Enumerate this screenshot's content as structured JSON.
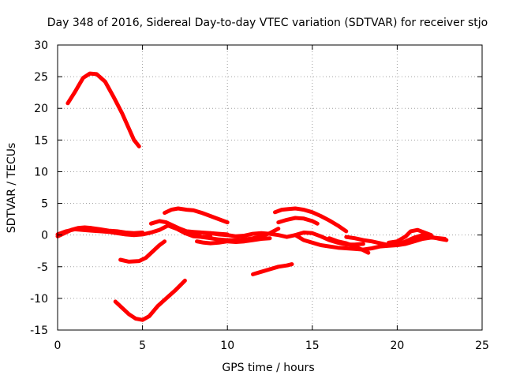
{
  "chart_data": {
    "type": "scatter",
    "title": "Day 348 of 2016, Sidereal Day-to-day VTEC variation (SDTVAR) for receiver stjo",
    "xlabel": "GPS time / hours",
    "ylabel": "SDTVAR / TECUs",
    "xlim": [
      0,
      25
    ],
    "ylim": [
      -15,
      30
    ],
    "xticks": [
      "0",
      "5",
      "10",
      "15",
      "20",
      "25"
    ],
    "yticks": [
      "-15",
      "-10",
      "-5",
      "0",
      "5",
      "10",
      "15",
      "20",
      "25",
      "30"
    ],
    "grid": true,
    "color": "#ff0000",
    "series": [
      {
        "name": "arc-1",
        "points": [
          [
            0.6,
            20.8
          ],
          [
            1.0,
            22.5
          ],
          [
            1.5,
            24.8
          ],
          [
            1.9,
            25.5
          ],
          [
            2.3,
            25.4
          ],
          [
            2.8,
            24.2
          ],
          [
            3.3,
            21.8
          ],
          [
            3.8,
            19.2
          ],
          [
            4.2,
            16.8
          ],
          [
            4.5,
            15.0
          ],
          [
            4.8,
            14.0
          ]
        ]
      },
      {
        "name": "arc-2",
        "points": [
          [
            3.4,
            -10.5
          ],
          [
            3.8,
            -11.5
          ],
          [
            4.2,
            -12.5
          ],
          [
            4.6,
            -13.2
          ],
          [
            5.0,
            -13.4
          ],
          [
            5.4,
            -12.8
          ],
          [
            5.9,
            -11.2
          ],
          [
            6.4,
            -10.0
          ],
          [
            6.9,
            -8.8
          ],
          [
            7.5,
            -7.2
          ]
        ]
      },
      {
        "name": "arc-3",
        "points": [
          [
            3.7,
            -3.9
          ],
          [
            4.2,
            -4.2
          ],
          [
            4.8,
            -4.1
          ],
          [
            5.2,
            -3.6
          ],
          [
            5.6,
            -2.6
          ],
          [
            6.0,
            -1.6
          ],
          [
            6.3,
            -1.0
          ]
        ]
      },
      {
        "name": "arc-4",
        "points": [
          [
            0.0,
            0.1
          ],
          [
            0.5,
            0.6
          ],
          [
            1.0,
            0.9
          ],
          [
            1.5,
            0.8
          ],
          [
            2.0,
            0.7
          ],
          [
            2.5,
            0.6
          ],
          [
            3.0,
            0.5
          ],
          [
            3.5,
            0.3
          ],
          [
            4.0,
            0.1
          ],
          [
            4.5,
            0.0
          ],
          [
            5.0,
            0.1
          ],
          [
            5.5,
            0.4
          ],
          [
            6.0,
            0.8
          ],
          [
            6.5,
            1.5
          ],
          [
            7.0,
            1.0
          ],
          [
            7.5,
            0.3
          ],
          [
            8.0,
            -0.2
          ],
          [
            8.5,
            -0.3
          ],
          [
            9.0,
            -0.2
          ]
        ]
      },
      {
        "name": "arc-5",
        "points": [
          [
            0.0,
            -0.2
          ],
          [
            0.4,
            0.3
          ],
          [
            0.8,
            0.8
          ],
          [
            1.2,
            1.1
          ],
          [
            1.6,
            1.2
          ],
          [
            2.0,
            1.1
          ],
          [
            2.5,
            0.9
          ],
          [
            3.0,
            0.7
          ],
          [
            3.5,
            0.6
          ],
          [
            4.0,
            0.4
          ],
          [
            4.5,
            0.3
          ],
          [
            5.0,
            0.4
          ]
        ]
      },
      {
        "name": "arc-6",
        "points": [
          [
            6.3,
            3.5
          ],
          [
            6.7,
            4.0
          ],
          [
            7.1,
            4.2
          ],
          [
            7.6,
            4.0
          ],
          [
            8.0,
            3.9
          ],
          [
            8.5,
            3.5
          ],
          [
            9.0,
            3.0
          ],
          [
            9.5,
            2.5
          ],
          [
            10.0,
            2.0
          ]
        ]
      },
      {
        "name": "arc-7",
        "points": [
          [
            5.5,
            1.8
          ],
          [
            6.0,
            2.2
          ],
          [
            6.4,
            2.0
          ],
          [
            6.8,
            1.5
          ],
          [
            7.2,
            1.0
          ],
          [
            7.6,
            0.6
          ],
          [
            8.0,
            0.5
          ],
          [
            8.5,
            0.4
          ],
          [
            9.0,
            0.3
          ],
          [
            9.5,
            0.2
          ],
          [
            10.0,
            0.1
          ]
        ]
      },
      {
        "name": "arc-8",
        "points": [
          [
            8.0,
            0.2
          ],
          [
            8.5,
            -0.3
          ],
          [
            9.0,
            -0.5
          ],
          [
            9.5,
            -0.7
          ],
          [
            10.0,
            -0.8
          ],
          [
            10.5,
            -0.8
          ],
          [
            11.0,
            -0.7
          ],
          [
            11.5,
            -0.5
          ],
          [
            12.0,
            -0.2
          ],
          [
            12.5,
            0.3
          ],
          [
            13.0,
            1.0
          ]
        ]
      },
      {
        "name": "arc-9",
        "points": [
          [
            8.2,
            -1.0
          ],
          [
            8.6,
            -1.2
          ],
          [
            9.0,
            -1.3
          ],
          [
            9.5,
            -1.2
          ],
          [
            10.0,
            -1.0
          ],
          [
            10.5,
            -1.1
          ],
          [
            11.0,
            -1.0
          ],
          [
            11.5,
            -0.8
          ],
          [
            12.0,
            -0.6
          ],
          [
            12.5,
            -0.5
          ]
        ]
      },
      {
        "name": "arc-10",
        "points": [
          [
            9.0,
            0.3
          ],
          [
            9.5,
            0.1
          ],
          [
            10.0,
            0.0
          ],
          [
            10.5,
            -0.2
          ],
          [
            11.0,
            -0.1
          ],
          [
            11.5,
            0.2
          ],
          [
            12.0,
            0.3
          ],
          [
            12.5,
            0.2
          ],
          [
            13.0,
            0.0
          ],
          [
            13.5,
            -0.3
          ],
          [
            14.0,
            0.0
          ],
          [
            14.5,
            0.4
          ],
          [
            15.0,
            0.3
          ],
          [
            15.5,
            -0.2
          ],
          [
            16.0,
            -0.8
          ],
          [
            16.5,
            -1.2
          ],
          [
            17.0,
            -1.5
          ],
          [
            17.5,
            -1.5
          ],
          [
            18.0,
            -1.4
          ]
        ]
      },
      {
        "name": "arc-11",
        "points": [
          [
            11.5,
            -6.2
          ],
          [
            12.0,
            -5.8
          ],
          [
            12.5,
            -5.4
          ],
          [
            13.0,
            -5.0
          ],
          [
            13.5,
            -4.8
          ],
          [
            13.8,
            -4.6
          ]
        ]
      },
      {
        "name": "arc-12",
        "points": [
          [
            12.8,
            3.6
          ],
          [
            13.2,
            4.0
          ],
          [
            13.6,
            4.1
          ],
          [
            14.0,
            4.2
          ],
          [
            14.5,
            4.0
          ],
          [
            15.0,
            3.6
          ],
          [
            15.5,
            3.0
          ],
          [
            16.0,
            2.3
          ],
          [
            16.5,
            1.5
          ],
          [
            17.0,
            0.6
          ]
        ]
      },
      {
        "name": "arc-13",
        "points": [
          [
            13.0,
            2.0
          ],
          [
            13.5,
            2.4
          ],
          [
            14.0,
            2.7
          ],
          [
            14.5,
            2.6
          ],
          [
            15.0,
            2.2
          ],
          [
            15.3,
            1.8
          ]
        ]
      },
      {
        "name": "arc-14",
        "points": [
          [
            14.0,
            0.0
          ],
          [
            14.5,
            -0.8
          ],
          [
            15.0,
            -1.2
          ],
          [
            15.5,
            -1.6
          ],
          [
            16.0,
            -1.8
          ],
          [
            16.5,
            -2.0
          ],
          [
            17.0,
            -2.1
          ],
          [
            17.5,
            -2.2
          ],
          [
            18.0,
            -2.3
          ],
          [
            18.5,
            -2.1
          ],
          [
            19.0,
            -1.8
          ],
          [
            19.5,
            -1.7
          ],
          [
            20.0,
            -1.6
          ],
          [
            20.5,
            -1.4
          ],
          [
            21.0,
            -1.0
          ],
          [
            21.5,
            -0.6
          ],
          [
            22.0,
            -0.4
          ],
          [
            22.5,
            -0.5
          ],
          [
            22.8,
            -0.6
          ]
        ]
      },
      {
        "name": "arc-15",
        "points": [
          [
            17.0,
            -0.3
          ],
          [
            17.5,
            -0.5
          ],
          [
            18.0,
            -0.8
          ],
          [
            18.5,
            -1.0
          ],
          [
            19.0,
            -1.3
          ],
          [
            19.5,
            -1.6
          ],
          [
            20.0,
            -1.5
          ],
          [
            20.5,
            -1.0
          ],
          [
            21.0,
            -0.4
          ],
          [
            21.5,
            0.0
          ],
          [
            22.0,
            -0.3
          ],
          [
            22.5,
            -0.6
          ],
          [
            22.9,
            -0.8
          ]
        ]
      },
      {
        "name": "arc-16",
        "points": [
          [
            16.0,
            -0.5
          ],
          [
            16.5,
            -1.0
          ],
          [
            17.0,
            -1.3
          ],
          [
            17.5,
            -1.8
          ],
          [
            18.0,
            -2.4
          ],
          [
            18.3,
            -2.8
          ]
        ]
      },
      {
        "name": "arc-17",
        "points": [
          [
            19.5,
            -1.2
          ],
          [
            20.0,
            -1.0
          ],
          [
            20.5,
            -0.2
          ],
          [
            20.8,
            0.6
          ],
          [
            21.2,
            0.8
          ],
          [
            21.6,
            0.4
          ],
          [
            22.0,
            0.0
          ]
        ]
      }
    ]
  }
}
